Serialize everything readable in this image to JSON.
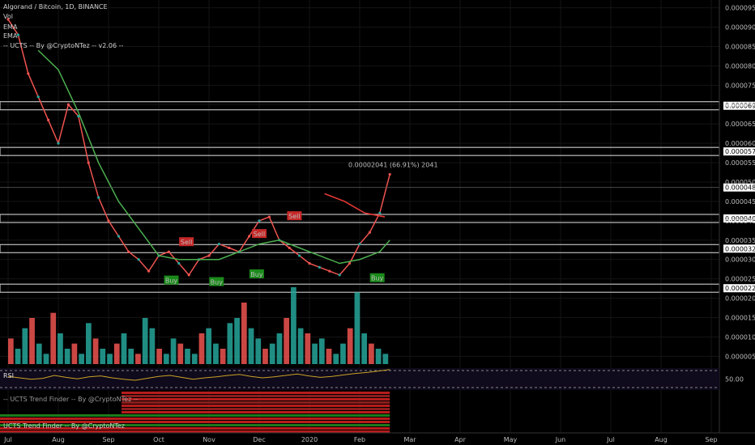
{
  "header": {
    "title": "Algorand / Bitcoin, 1D, BINANCE",
    "indicators": [
      "Vol",
      "EMA",
      "EMA",
      "-- UCTS -- By @CryptoNTez -- v2.06 --"
    ]
  },
  "colors": {
    "background": "#000000",
    "up": "#26a69a",
    "down": "#ef5350",
    "ema_green": "#4caf50",
    "ema_red": "#e53935",
    "rsi_line": "#c9a227",
    "level_box": "#bdbdbd",
    "buy": "#1b8a1b",
    "sell": "#c62828"
  },
  "chart_data": {
    "type": "line",
    "title": "Algorand / Bitcoin, 1D, BINANCE",
    "x_labels": [
      "Jul",
      "Aug",
      "Sep",
      "Oct",
      "Nov",
      "Dec",
      "2020",
      "Feb",
      "Mar",
      "Apr",
      "May",
      "Jun",
      "Jul",
      "Aug",
      "Sep"
    ],
    "y_ticks": [
      "0.00009500",
      "0.00009000",
      "0.00008500",
      "0.00008000",
      "0.00007500",
      "0.00007000",
      "0.00006500",
      "0.00006000",
      "0.00005500",
      "0.00005000",
      "0.00004500",
      "0.00004000",
      "0.00003500",
      "0.00003000",
      "0.00002500",
      "0.00002000",
      "0.00001500",
      "0.00001000",
      "0.00000500"
    ],
    "price_series": {
      "name": "",
      "x_month_index": [
        0.0,
        0.2,
        0.4,
        0.6,
        0.8,
        1.0,
        1.2,
        1.4,
        1.6,
        1.8,
        2.0,
        2.2,
        2.4,
        2.6,
        2.8,
        3.0,
        3.2,
        3.4,
        3.6,
        3.8,
        4.0,
        4.2,
        4.4,
        4.6,
        4.8,
        5.0,
        5.2,
        5.4,
        5.6,
        5.8,
        6.0,
        6.2,
        6.4,
        6.6,
        6.8,
        7.0,
        7.2,
        7.4,
        7.6
      ],
      "values": [
        9.2e-05,
        8.8e-05,
        7.8e-05,
        7.2e-05,
        6.6e-05,
        6e-05,
        7e-05,
        6.7e-05,
        5.5e-05,
        4.6e-05,
        4e-05,
        3.6e-05,
        3.2e-05,
        3e-05,
        2.7e-05,
        3.1e-05,
        3.2e-05,
        2.9e-05,
        2.6e-05,
        3e-05,
        3.1e-05,
        3.4e-05,
        3.3e-05,
        3.2e-05,
        3.6e-05,
        4e-05,
        4.1e-05,
        3.5e-05,
        3.3e-05,
        3.1e-05,
        2.9e-05,
        2.8e-05,
        2.7e-05,
        2.6e-05,
        2.9e-05,
        3.4e-05,
        3.7e-05,
        4.2e-05,
        5.2e-05
      ]
    },
    "ema_series": {
      "x_month_index": [
        0.6,
        1.0,
        1.4,
        1.8,
        2.2,
        2.6,
        3.0,
        3.4,
        3.8,
        4.2,
        4.6,
        5.0,
        5.4,
        5.8,
        6.2,
        6.6,
        7.0,
        7.4,
        7.6
      ],
      "values": [
        8.4e-05,
        7.9e-05,
        6.8e-05,
        5.5e-05,
        4.5e-05,
        3.8e-05,
        3.1e-05,
        3e-05,
        3e-05,
        3e-05,
        3.2e-05,
        3.4e-05,
        3.5e-05,
        3.3e-05,
        3.1e-05,
        2.9e-05,
        3e-05,
        3.2e-05,
        3.5e-05
      ]
    },
    "ema_red_series": {
      "x_month_index": [
        6.3,
        6.7,
        7.1,
        7.5
      ],
      "values": [
        4.7e-05,
        4.5e-05,
        4.2e-05,
        4.1e-05
      ]
    },
    "volume": [
      5,
      3,
      7,
      9,
      4,
      2,
      10,
      6,
      3,
      4,
      2,
      8,
      5,
      3,
      2,
      4,
      6,
      3,
      2,
      9,
      7,
      3,
      2,
      5,
      4,
      3,
      2,
      6,
      7,
      4,
      3,
      8,
      9,
      12,
      7,
      5,
      3,
      4,
      6,
      9,
      15,
      7,
      6,
      4,
      5,
      3,
      2,
      4,
      7,
      14,
      6,
      4,
      3,
      2
    ],
    "levels": [
      {
        "value": 6.97e-05,
        "label": "0.00006970"
      },
      {
        "value": 5.79e-05,
        "label": "0.00005790"
      },
      {
        "value": 4.06e-05,
        "label": "0.00004060"
      },
      {
        "value": 3.281e-05,
        "label": "0.00003281"
      },
      {
        "value": 2.259e-05,
        "label": "0.00002259"
      }
    ],
    "current_price": {
      "value": 4.86e-05,
      "label": "0.00004860"
    },
    "measure_label": "0.00002041 (66.91%) 2041",
    "signals": [
      {
        "type": "Sell",
        "x_month_index": 3.55,
        "value": 3.45e-05
      },
      {
        "type": "Buy",
        "x_month_index": 3.25,
        "value": 2.46e-05
      },
      {
        "type": "Buy",
        "x_month_index": 4.15,
        "value": 2.42e-05
      },
      {
        "type": "Buy",
        "x_month_index": 4.95,
        "value": 2.62e-05
      },
      {
        "type": "Sell",
        "x_month_index": 5.0,
        "value": 3.66e-05
      },
      {
        "type": "Sell",
        "x_month_index": 5.7,
        "value": 4.12e-05
      },
      {
        "type": "Buy",
        "x_month_index": 7.35,
        "value": 2.52e-05
      }
    ]
  },
  "rsi": {
    "label": "RSI",
    "value_label": "50.00",
    "values": [
      58,
      55,
      52,
      54,
      60,
      56,
      53,
      57,
      59,
      55,
      52,
      50,
      54,
      58,
      60,
      56,
      52,
      55,
      57,
      60,
      62,
      58,
      55,
      57,
      60,
      63,
      59,
      56,
      58,
      61,
      64,
      66,
      69,
      72
    ]
  },
  "panels": {
    "trend1_label": "-- UCTS Trend Finder -- By @CryptoNTez --",
    "trend2_label": "UCTS Trend Finder -- By @CryptoNTez"
  }
}
